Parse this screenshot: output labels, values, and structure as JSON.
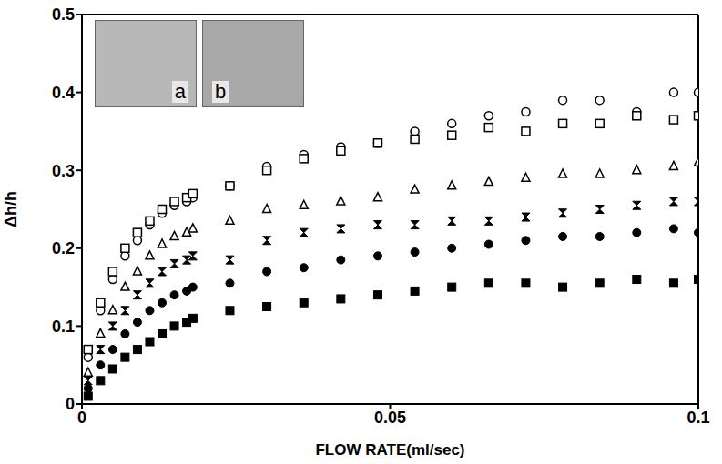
{
  "chart_data": {
    "type": "scatter",
    "x_label": "FLOW RATE(ml/sec)",
    "y_label": "Δh/h",
    "annotations": [
      "a",
      "b"
    ],
    "xlim": [
      0,
      0.1
    ],
    "xticks": [
      0,
      0.05,
      0.1
    ],
    "ylim": [
      0,
      0.5
    ],
    "yticks": [
      0,
      0.1,
      0.2,
      0.3,
      0.4,
      0.5
    ],
    "grid": false,
    "x": [
      0.001,
      0.003,
      0.005,
      0.007,
      0.009,
      0.011,
      0.013,
      0.015,
      0.017,
      0.018,
      0.024,
      0.03,
      0.036,
      0.042,
      0.048,
      0.054,
      0.06,
      0.066,
      0.072,
      0.078,
      0.084,
      0.09,
      0.096,
      0.1
    ],
    "series": [
      {
        "color": "#000000",
        "marker": "circle_open",
        "values": [
          0.06,
          0.12,
          0.16,
          0.19,
          0.21,
          0.23,
          0.245,
          0.255,
          0.26,
          0.265,
          0.28,
          0.305,
          0.32,
          0.33,
          0.335,
          0.35,
          0.36,
          0.37,
          0.375,
          0.39,
          0.39,
          0.375,
          0.4,
          0.4
        ]
      },
      {
        "color": "#000000",
        "marker": "square_open",
        "values": [
          0.07,
          0.13,
          0.17,
          0.2,
          0.22,
          0.235,
          0.25,
          0.26,
          0.265,
          0.27,
          0.28,
          0.3,
          0.315,
          0.325,
          0.335,
          0.34,
          0.345,
          0.355,
          0.35,
          0.36,
          0.36,
          0.37,
          0.365,
          0.37
        ]
      },
      {
        "color": "#000000",
        "marker": "triangle_open",
        "values": [
          0.04,
          0.09,
          0.12,
          0.15,
          0.17,
          0.19,
          0.205,
          0.215,
          0.22,
          0.225,
          0.235,
          0.25,
          0.255,
          0.26,
          0.265,
          0.275,
          0.28,
          0.285,
          0.29,
          0.295,
          0.295,
          0.3,
          0.305,
          0.31
        ]
      },
      {
        "color": "#000000",
        "marker": "hourglass",
        "values": [
          0.03,
          0.07,
          0.1,
          0.12,
          0.14,
          0.155,
          0.17,
          0.18,
          0.185,
          0.19,
          0.185,
          0.21,
          0.22,
          0.225,
          0.23,
          0.23,
          0.235,
          0.235,
          0.24,
          0.245,
          0.25,
          0.255,
          0.26,
          0.26
        ]
      },
      {
        "color": "#000000",
        "marker": "circle",
        "values": [
          0.02,
          0.05,
          0.07,
          0.09,
          0.105,
          0.12,
          0.13,
          0.14,
          0.145,
          0.15,
          0.155,
          0.17,
          0.175,
          0.185,
          0.19,
          0.195,
          0.2,
          0.205,
          0.21,
          0.215,
          0.215,
          0.22,
          0.225,
          0.22
        ]
      },
      {
        "color": "#000000",
        "marker": "square",
        "values": [
          0.01,
          0.03,
          0.045,
          0.06,
          0.07,
          0.08,
          0.09,
          0.1,
          0.105,
          0.11,
          0.12,
          0.125,
          0.13,
          0.135,
          0.14,
          0.145,
          0.15,
          0.155,
          0.155,
          0.15,
          0.155,
          0.16,
          0.155,
          0.16
        ]
      }
    ]
  }
}
